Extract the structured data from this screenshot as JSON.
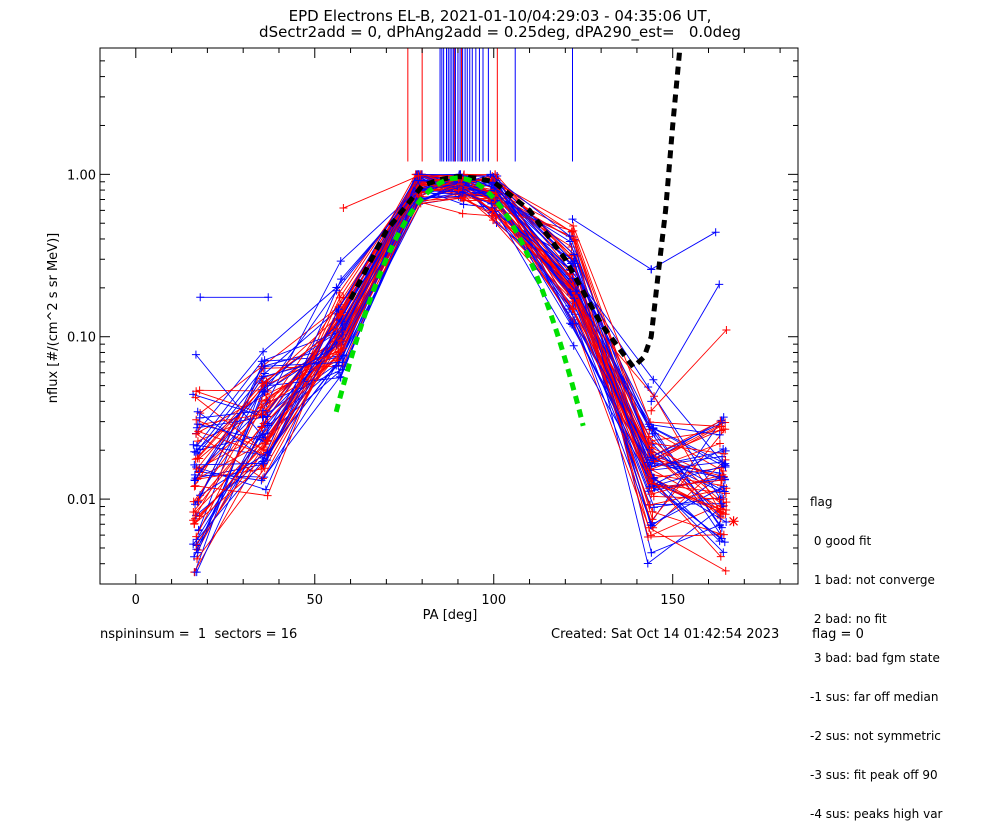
{
  "chart_data": {
    "type": "line",
    "title": "EPD Electrons EL-B, 2021-01-10/04:29:03 - 04:35:06 UT,",
    "subtitle": "dSectr2add = 0, dPhAng2add = 0.25deg, dPA290_est=   0.0deg",
    "xlabel": "PA [deg]",
    "ylabel": "nflux [#/(cm^2 s sr MeV)]",
    "xlim": [
      -10,
      185
    ],
    "ylim": [
      0.003,
      6.0
    ],
    "yscale": "log",
    "xticks": [
      0,
      50,
      100,
      150
    ],
    "xtick_labels": [
      "0",
      "50",
      "100",
      "150"
    ],
    "yticks": [
      0.01,
      0.1,
      1.0
    ],
    "ytick_labels": [
      "0.01",
      "0.10",
      "1.00"
    ],
    "colors": {
      "series_red": "#ff0000",
      "series_blue": "#0000ff",
      "fit_green": "#00e000",
      "model_black": "#000000"
    },
    "spectra_ensemble": {
      "count": 70,
      "pa_values": [
        17,
        36,
        57,
        79,
        91,
        100,
        122,
        144,
        164
      ],
      "median_profile": [
        0.012,
        0.03,
        0.11,
        0.85,
        0.82,
        0.76,
        0.2,
        0.016,
        0.011
      ],
      "log_spread": [
        0.45,
        0.3,
        0.22,
        0.1,
        0.06,
        0.1,
        0.25,
        0.35,
        0.3
      ]
    },
    "extra_segments": [
      {
        "color": "blue",
        "pa": [
          18,
          37
        ],
        "flux": [
          0.175,
          0.175
        ]
      },
      {
        "color": "red",
        "pa": [
          58,
          79
        ],
        "flux": [
          0.62,
          0.98
        ]
      },
      {
        "color": "blue",
        "pa": [
          122,
          144
        ],
        "flux": [
          0.53,
          0.26
        ]
      },
      {
        "color": "blue",
        "pa": [
          144,
          162
        ],
        "flux": [
          0.26,
          0.44
        ]
      },
      {
        "color": "blue",
        "pa": [
          144,
          163
        ],
        "flux": [
          0.04,
          0.21
        ]
      },
      {
        "color": "red",
        "pa": [
          144,
          165
        ],
        "flux": [
          0.035,
          0.11
        ]
      }
    ],
    "gaussian_fit": {
      "center": 90,
      "peak": 0.95,
      "sigma": 13.2,
      "pa_range": [
        56,
        125
      ]
    },
    "model_curve": {
      "pa": [
        60,
        70,
        80,
        85,
        90,
        95,
        100,
        110,
        120,
        125,
        130,
        135,
        139,
        142,
        144,
        146,
        148,
        150,
        152
      ],
      "flux": [
        0.17,
        0.45,
        0.85,
        0.93,
        0.97,
        0.95,
        0.9,
        0.6,
        0.3,
        0.19,
        0.12,
        0.085,
        0.065,
        0.075,
        0.1,
        0.25,
        0.6,
        2.0,
        6.0
      ]
    },
    "peak_markers": {
      "red_pa": [
        76,
        80,
        89,
        91,
        101
      ],
      "blue_pa": [
        85,
        85.5,
        86,
        86.8,
        87.3,
        87.8,
        88.3,
        88.8,
        89.3,
        90,
        90.6,
        91.3,
        92,
        92.6,
        93.3,
        94,
        95,
        96,
        97,
        98.5,
        106,
        122
      ],
      "flux_range": [
        1.2,
        6.0
      ]
    },
    "star_marker": {
      "pa": 167,
      "flux": 0.0073,
      "color": "red"
    }
  },
  "legend": {
    "title": "flag",
    "items": [
      " 0 good fit",
      " 1 bad: not converge",
      " 2 bad: no fit",
      " 3 bad: bad fgm state",
      "-1 sus: far off median",
      "-2 sus: not symmetric",
      "-3 sus: fit peak off 90",
      "-4 sus: peaks high var"
    ]
  },
  "footer": {
    "left": "nspininsum =  1  sectors = 16",
    "created": "Created: Sat Oct 14 01:42:54 2023",
    "flag": "flag = 0"
  }
}
